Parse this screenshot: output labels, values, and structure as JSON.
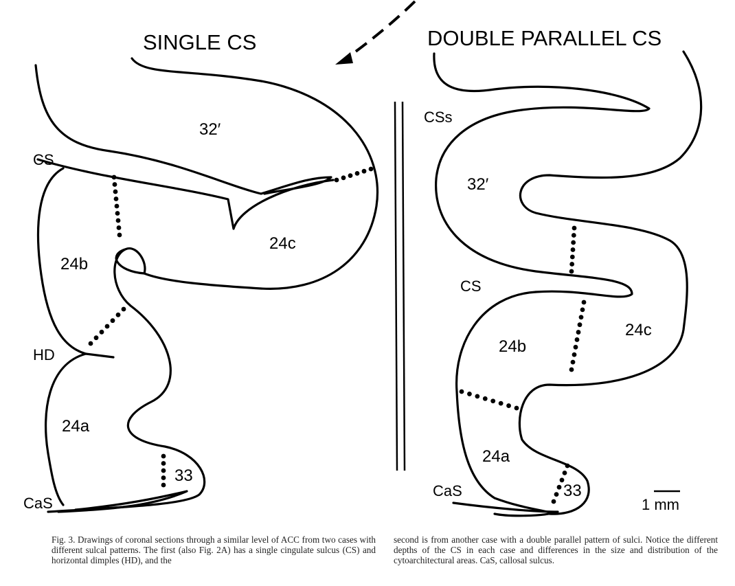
{
  "titles": {
    "left": "SINGLE CS",
    "right": "DOUBLE PARALLEL CS"
  },
  "left_labels": {
    "area_32": "32′",
    "cs": "CS",
    "area_24c": "24c",
    "area_24b": "24b",
    "hd": "HD",
    "area_24a": "24a",
    "area_33": "33",
    "cas": "CaS"
  },
  "right_labels": {
    "css": "CSs",
    "area_32": "32′",
    "cs": "CS",
    "area_24c": "24c",
    "area_24b": "24b",
    "area_24a": "24a",
    "cas": "CaS",
    "area_33": "33"
  },
  "scale_bar": {
    "label": "1 mm"
  },
  "caption": {
    "col1": "Fig. 3.  Drawings of coronal sections through a similar level of ACC from two cases with different sulcal patterns. The first (also Fig. 2A) has a single cingulate sulcus (CS) and horizontal dimples (HD), and the",
    "col2": "second is from another case with a double parallel pattern of sulci. Notice the different depths of the CS in each case and differences in the size and distribution of the cytoarchitectural areas. CaS, callosal sulcus."
  },
  "colors": {
    "ink": "#000000",
    "paper": "#ffffff"
  }
}
